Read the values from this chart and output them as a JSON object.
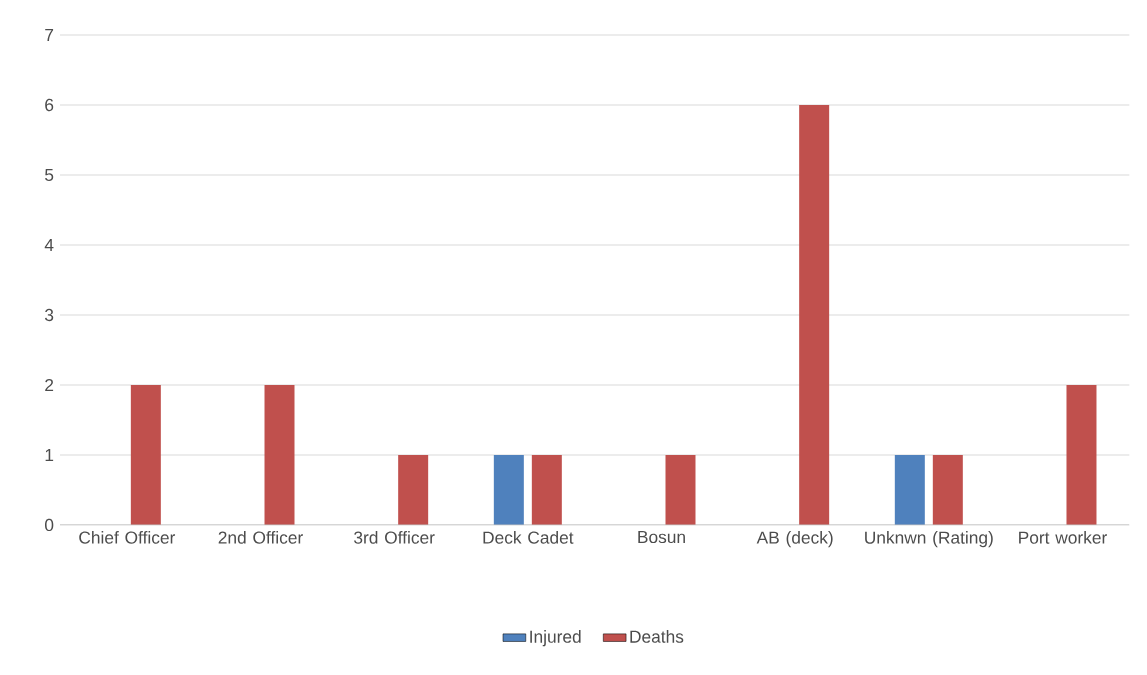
{
  "chart_data": {
    "type": "bar",
    "categories": [
      "Chief Officer",
      "2nd Officer",
      "3rd Officer",
      "Deck Cadet",
      "Bosun",
      "AB (deck)",
      "Unknwn (Rating)",
      "Port worker"
    ],
    "series": [
      {
        "name": "Injured",
        "color": "#4f81bd",
        "values": [
          0,
          0,
          0,
          1,
          0,
          0,
          1,
          0
        ]
      },
      {
        "name": "Deaths",
        "color": "#c0504d",
        "values": [
          2,
          2,
          1,
          1,
          1,
          6,
          1,
          2
        ]
      }
    ],
    "ylim": [
      0,
      7
    ],
    "yticks": [
      0,
      1,
      2,
      3,
      4,
      5,
      6,
      7
    ],
    "grid": "y",
    "legend": "bottom"
  }
}
